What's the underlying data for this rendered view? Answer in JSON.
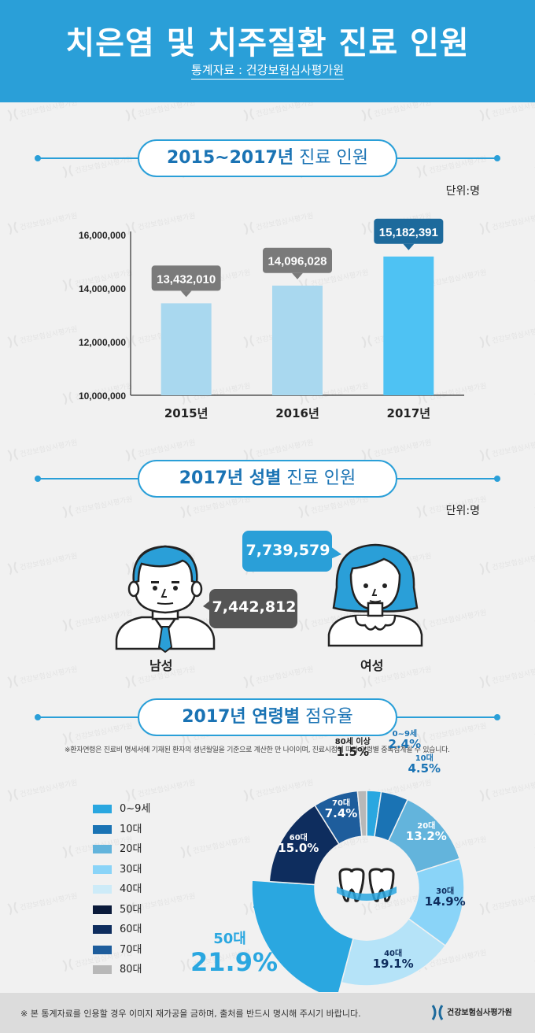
{
  "header": {
    "title": "치은염 및 치주질환 진료 인원",
    "source": "통계자료 : 건강보험심사평가원"
  },
  "section1": {
    "title_bold": "2015~2017년",
    "title_rest": "진료 인원",
    "unit": "단위:명"
  },
  "section2": {
    "title_bold": "2017년 성별",
    "title_rest": "진료 인원",
    "unit": "단위:명"
  },
  "section3": {
    "title_bold": "2017년 연령별",
    "title_rest": "점유율",
    "note": "※환자연령은 진료비 명세서에 기재된 환자의 생년월일을 기준으로 계산한 만 나이이며, 진료시점에 따라 연령별 중복집계될 수 있습니다."
  },
  "gender": {
    "male": {
      "label": "남성",
      "value": "7,442,812"
    },
    "female": {
      "label": "여성",
      "value": "7,739,579"
    }
  },
  "footer": {
    "notice": "※ 본 통계자료를 인용할 경우 이미지 재가공을 금하며, 출처를 반드시 명시해 주시기 바랍니다.",
    "org": "건강보험심사평가원"
  },
  "colors": {
    "accent": "#2a9fd8",
    "bar_light": "#a9d8ef",
    "bar_highlight": "#4ec2f3",
    "callout_gray": "#7a7a7a",
    "callout_blue": "#1d6a9c"
  },
  "chart_data": [
    {
      "type": "bar",
      "categories": [
        "2015년",
        "2016년",
        "2017년"
      ],
      "values": [
        13432010,
        14096028,
        15182391
      ],
      "value_labels": [
        "13,432,010",
        "14,096,028",
        "15,182,391"
      ],
      "ylim": [
        10000000,
        16000000
      ],
      "yticks": [
        10000000,
        12000000,
        14000000,
        16000000
      ],
      "ytick_labels": [
        "10,000,000",
        "12,000,000",
        "14,000,000",
        "16,000,000"
      ],
      "highlight_index": 2,
      "unit": "단위:명"
    },
    {
      "type": "pie",
      "categories": [
        "0~9세",
        "10대",
        "20대",
        "30대",
        "40대",
        "50대",
        "60대",
        "70대",
        "80대"
      ],
      "slice_labels": [
        "0~9세",
        "10대",
        "20대",
        "30대",
        "40대",
        "50대",
        "60대",
        "70대",
        "80세 이상"
      ],
      "values": [
        2.4,
        4.5,
        13.2,
        14.9,
        19.1,
        21.9,
        15.0,
        7.4,
        1.5
      ],
      "value_labels": [
        "2.4%",
        "4.5%",
        "13.2%",
        "14.9%",
        "19.1%",
        "21.9%",
        "15.0%",
        "7.4%",
        "1.5%"
      ],
      "colors": [
        "#2aa7e0",
        "#1a73b4",
        "#63b4dc",
        "#8ad4f8",
        "#b5e3f8",
        "#2aa7e0",
        "#0e2d5e",
        "#1e5d9c",
        "#b8b8b8"
      ],
      "legend_colors": [
        "#2aa7e0",
        "#1a73b4",
        "#63b4dc",
        "#8ad4f8",
        "#cdebf8",
        "#0a1a3a",
        "#0e2d5e",
        "#1e5d9c",
        "#b8b8b8"
      ],
      "donut": true,
      "legend_position": "left"
    }
  ]
}
